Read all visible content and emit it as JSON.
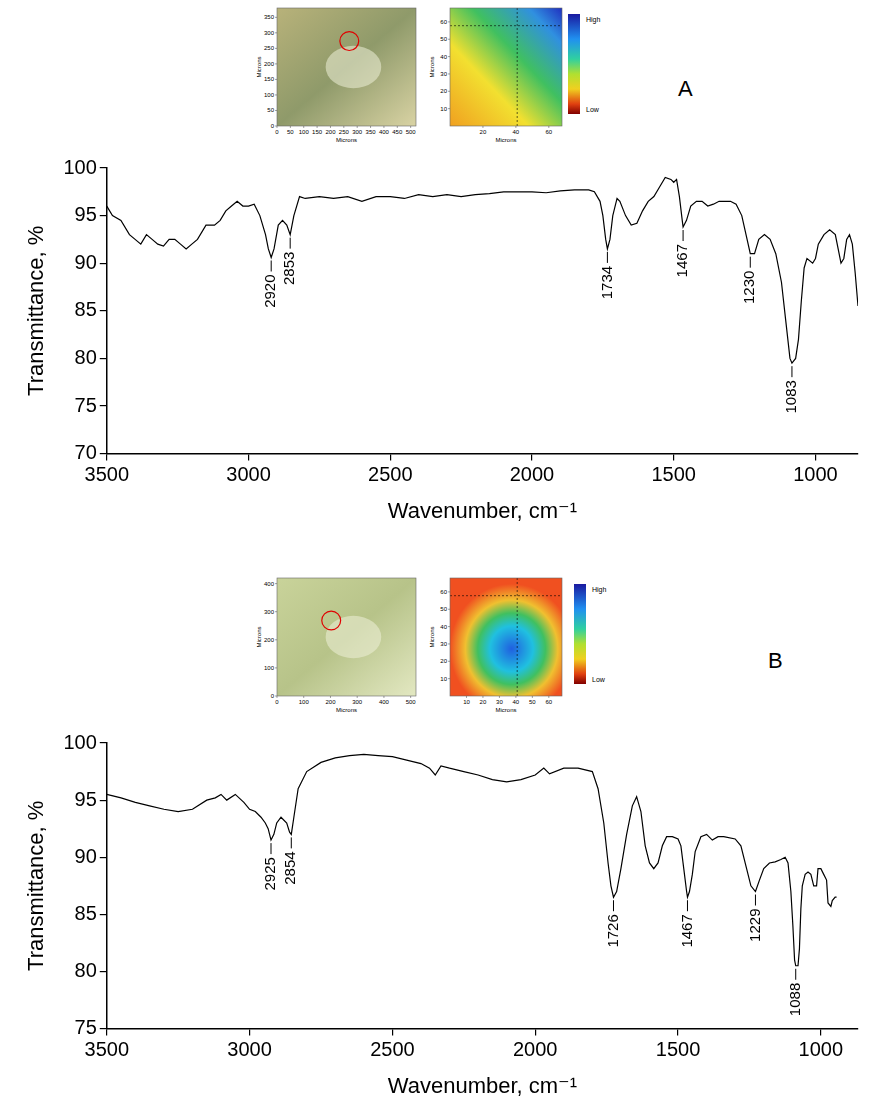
{
  "chart_data": [
    {
      "type": "line",
      "label": "A",
      "x_label": "Wavenumber, cm⁻¹",
      "y_label": "Transmittance, %",
      "xlim": [
        850,
        3500
      ],
      "xticks": [
        3500,
        3000,
        2500,
        2000,
        1500,
        1000
      ],
      "ylim": [
        70,
        100
      ],
      "yticks": [
        70,
        75,
        80,
        85,
        90,
        95,
        100
      ],
      "grid": false,
      "color": "#000000",
      "x": [
        3500,
        3480,
        3450,
        3420,
        3400,
        3380,
        3360,
        3340,
        3320,
        3300,
        3280,
        3260,
        3240,
        3220,
        3200,
        3180,
        3150,
        3120,
        3100,
        3080,
        3060,
        3040,
        3020,
        3000,
        2980,
        2960,
        2940,
        2930,
        2920,
        2910,
        2895,
        2880,
        2865,
        2853,
        2840,
        2820,
        2800,
        2750,
        2700,
        2650,
        2600,
        2550,
        2500,
        2450,
        2400,
        2350,
        2300,
        2250,
        2200,
        2150,
        2100,
        2050,
        2000,
        1950,
        1900,
        1850,
        1800,
        1780,
        1760,
        1750,
        1740,
        1734,
        1725,
        1715,
        1700,
        1690,
        1670,
        1650,
        1630,
        1610,
        1590,
        1570,
        1550,
        1530,
        1510,
        1500,
        1490,
        1480,
        1470,
        1467,
        1455,
        1440,
        1420,
        1400,
        1380,
        1360,
        1340,
        1300,
        1280,
        1260,
        1245,
        1230,
        1215,
        1200,
        1180,
        1160,
        1140,
        1120,
        1105,
        1090,
        1083,
        1070,
        1060,
        1050,
        1040,
        1030,
        1010,
        1000,
        990,
        970,
        950,
        930,
        920,
        910,
        900,
        890,
        880,
        870,
        860,
        850
      ],
      "values": [
        96,
        95,
        94.5,
        93,
        92.5,
        92,
        93,
        92.5,
        92,
        91.8,
        92.5,
        92.5,
        92,
        91.5,
        92,
        92.5,
        94,
        94,
        94.5,
        95.5,
        96,
        96.5,
        96,
        96,
        96.2,
        95,
        93,
        91.5,
        90.6,
        91.5,
        94,
        94.5,
        94,
        93,
        95,
        97,
        96.8,
        97,
        96.8,
        97,
        96.5,
        97,
        97,
        96.8,
        97.2,
        97,
        97.2,
        97,
        97.2,
        97.3,
        97.5,
        97.5,
        97.5,
        97.4,
        97.6,
        97.7,
        97.7,
        97.5,
        96.5,
        95,
        92.5,
        91.5,
        92.5,
        95,
        96.8,
        96.5,
        95,
        94,
        94.2,
        95.5,
        96.5,
        97,
        98,
        99,
        98.8,
        98.5,
        98.8,
        97,
        94.5,
        93.8,
        94.5,
        96,
        96.5,
        96.5,
        96,
        96.2,
        96.5,
        96.5,
        96.2,
        95,
        93,
        91,
        91,
        92.5,
        93,
        92.5,
        91,
        88,
        84,
        80,
        79.5,
        80,
        82,
        86,
        89.5,
        90.5,
        90,
        90.5,
        92,
        93,
        93.5,
        93,
        91.5,
        90,
        90.5,
        92.5,
        93,
        92,
        89,
        85.5
      ],
      "annotations": [
        {
          "x": 2920,
          "y": 90.6
        },
        {
          "x": 2853,
          "y": 93
        },
        {
          "x": 1734,
          "y": 91.5
        },
        {
          "x": 1467,
          "y": 93.8
        },
        {
          "x": 1230,
          "y": 91
        },
        {
          "x": 1083,
          "y": 79.5
        }
      ],
      "insets": {
        "photo": {
          "xlabel": "Microns",
          "ylabel": "Microns",
          "xlim": [
            0,
            520
          ],
          "ylim": [
            0,
            380
          ],
          "xticks": [
            0,
            50,
            100,
            150,
            200,
            250,
            300,
            350,
            400,
            450,
            500
          ],
          "yticks": [
            0,
            50,
            100,
            150,
            200,
            250,
            300,
            350
          ]
        },
        "map": {
          "xlabel": "Microns",
          "ylabel": "Microns",
          "xlim": [
            0,
            68
          ],
          "ylim": [
            0,
            68
          ],
          "xticks": [
            20,
            40,
            60
          ],
          "yticks": [
            10,
            20,
            30,
            40,
            50,
            60
          ]
        },
        "colorbar": {
          "high": "High",
          "low": "Low"
        }
      }
    },
    {
      "type": "line",
      "label": "B",
      "x_label": "Wavenumber, cm⁻¹",
      "y_label": "Transmittance, %",
      "xlim": [
        870,
        3500
      ],
      "xticks": [
        3500,
        3000,
        2500,
        2000,
        1500,
        1000
      ],
      "ylim": [
        75,
        100
      ],
      "yticks": [
        75,
        80,
        85,
        90,
        95,
        100
      ],
      "grid": false,
      "color": "#000000",
      "x": [
        3500,
        3450,
        3400,
        3350,
        3300,
        3250,
        3200,
        3150,
        3120,
        3100,
        3080,
        3050,
        3020,
        3000,
        2980,
        2960,
        2945,
        2935,
        2925,
        2915,
        2905,
        2890,
        2870,
        2860,
        2854,
        2845,
        2830,
        2800,
        2750,
        2700,
        2650,
        2600,
        2550,
        2500,
        2450,
        2400,
        2370,
        2350,
        2330,
        2300,
        2250,
        2200,
        2150,
        2100,
        2050,
        2000,
        1970,
        1950,
        1900,
        1850,
        1800,
        1780,
        1760,
        1745,
        1735,
        1726,
        1715,
        1700,
        1680,
        1660,
        1645,
        1630,
        1615,
        1600,
        1585,
        1570,
        1555,
        1540,
        1520,
        1500,
        1490,
        1480,
        1470,
        1467,
        1460,
        1450,
        1440,
        1420,
        1400,
        1380,
        1360,
        1340,
        1300,
        1280,
        1260,
        1245,
        1229,
        1215,
        1200,
        1180,
        1160,
        1140,
        1125,
        1115,
        1105,
        1098,
        1092,
        1088,
        1080,
        1075,
        1070,
        1065,
        1055,
        1045,
        1035,
        1025,
        1015,
        1010,
        1000,
        990,
        980,
        975,
        965,
        960,
        950,
        945
      ],
      "values": [
        95.5,
        95.2,
        94.8,
        94.5,
        94.2,
        94,
        94.2,
        95,
        95.2,
        95.5,
        95,
        95.5,
        94.8,
        94.2,
        94,
        93.5,
        93,
        92.5,
        91.5,
        92,
        93,
        93.5,
        93,
        92.2,
        92,
        93.5,
        96,
        97.5,
        98.3,
        98.7,
        98.9,
        99,
        98.9,
        98.8,
        98.5,
        98.2,
        97.8,
        97.2,
        98,
        97.8,
        97.5,
        97.2,
        96.8,
        96.6,
        96.8,
        97.2,
        97.8,
        97.3,
        97.8,
        97.8,
        97.5,
        96,
        93,
        89.5,
        87.5,
        86.5,
        87,
        89,
        92,
        94.5,
        95.3,
        94,
        91,
        89.5,
        89,
        89.5,
        91,
        91.8,
        91.8,
        91.6,
        91,
        89,
        87,
        86.5,
        87,
        88.5,
        90.5,
        91.8,
        92,
        91.5,
        91.8,
        91.8,
        91.6,
        91,
        89,
        87.5,
        87,
        88,
        89,
        89.5,
        89.6,
        89.8,
        90,
        89.5,
        87,
        84,
        81,
        80.5,
        80.5,
        82,
        85.5,
        87.5,
        88.5,
        88.7,
        88.5,
        87.5,
        87.5,
        89,
        89,
        88.5,
        88,
        86,
        85.7,
        86.2,
        86.5,
        86.5
      ],
      "annotations": [
        {
          "x": 2925,
          "y": 91.5
        },
        {
          "x": 2854,
          "y": 92
        },
        {
          "x": 1726,
          "y": 86.5
        },
        {
          "x": 1467,
          "y": 86.5
        },
        {
          "x": 1229,
          "y": 87
        },
        {
          "x": 1088,
          "y": 80.5
        }
      ],
      "insets": {
        "photo": {
          "xlabel": "Microns",
          "ylabel": "Microns",
          "xlim": [
            0,
            520
          ],
          "ylim": [
            0,
            420
          ],
          "xticks": [
            0,
            100,
            200,
            300,
            400,
            500
          ],
          "yticks": [
            0,
            100,
            200,
            300,
            400
          ]
        },
        "map": {
          "xlabel": "Microns",
          "ylabel": "Microns",
          "xlim": [
            0,
            68
          ],
          "ylim": [
            0,
            68
          ],
          "xticks": [
            10,
            20,
            30,
            40,
            50,
            60
          ],
          "yticks": [
            10,
            20,
            30,
            40,
            50,
            60
          ]
        },
        "colorbar": {
          "high": "High",
          "low": "Low"
        }
      }
    }
  ]
}
